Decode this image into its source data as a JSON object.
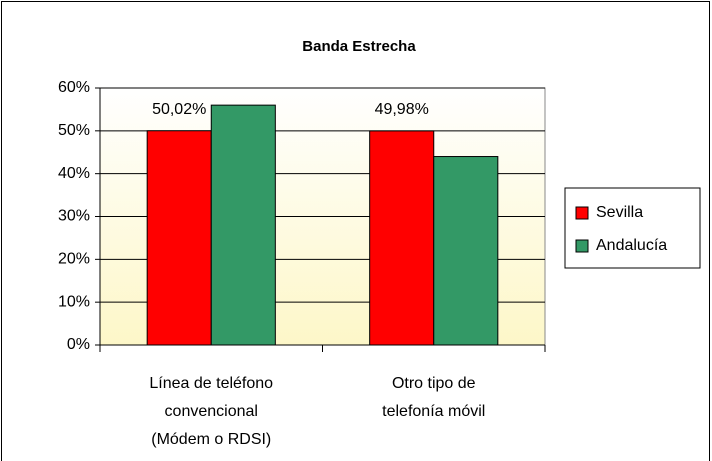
{
  "chart_data": {
    "type": "bar",
    "title": "Banda Estrecha",
    "categories": [
      "Línea de teléfono\nconvencional\n(Módem o RDSI)",
      "Otro tipo de\ntelefonía móvil"
    ],
    "series": [
      {
        "name": "Sevilla",
        "color": "#ff0000",
        "values": [
          50.02,
          49.98
        ],
        "value_labels": [
          "50,02%",
          "49,98%"
        ]
      },
      {
        "name": "Andalucía",
        "color": "#339966",
        "values": [
          56,
          44
        ]
      }
    ],
    "ylim": [
      0,
      60
    ],
    "yticks": [
      {
        "value": 0,
        "label": "0%"
      },
      {
        "value": 10,
        "label": "10%"
      },
      {
        "value": 20,
        "label": "20%"
      },
      {
        "value": 30,
        "label": "30%"
      },
      {
        "value": 40,
        "label": "40%"
      },
      {
        "value": 50,
        "label": "50%"
      },
      {
        "value": 60,
        "label": "60%"
      }
    ],
    "grid": true,
    "legend": "right"
  }
}
